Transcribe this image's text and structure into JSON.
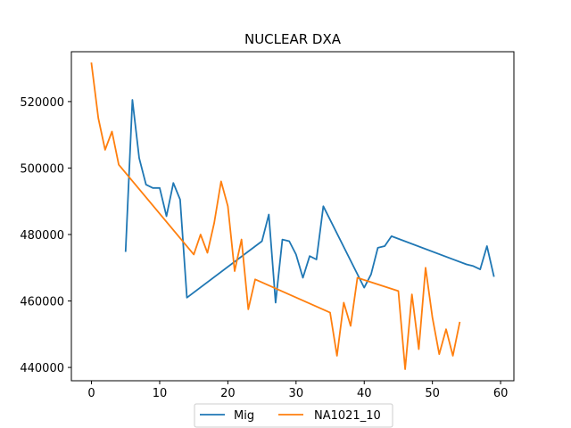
{
  "chart_data": {
    "type": "line",
    "title": "NUCLEAR DXA",
    "xlabel": "",
    "ylabel": "",
    "xlim": [
      -2.95,
      61.95
    ],
    "ylim": [
      436000,
      535000
    ],
    "xticks": [
      0,
      10,
      20,
      30,
      40,
      50,
      60
    ],
    "yticks": [
      440000,
      460000,
      480000,
      500000,
      520000
    ],
    "grid": false,
    "legend_position": "bottom-center",
    "series": [
      {
        "name": "Mig",
        "color": "#1f77b4",
        "points": [
          [
            5,
            475000
          ],
          [
            6,
            520500
          ],
          [
            7,
            503000
          ],
          [
            8,
            495000
          ],
          [
            9,
            494000
          ],
          [
            10,
            494000
          ],
          [
            11,
            485500
          ],
          [
            12,
            495500
          ],
          [
            13,
            490500
          ],
          [
            14,
            461000
          ],
          [
            25,
            478000
          ],
          [
            26,
            486000
          ],
          [
            27,
            459500
          ],
          [
            28,
            478500
          ],
          [
            29,
            478000
          ],
          [
            30,
            474000
          ],
          [
            31,
            467000
          ],
          [
            32,
            473500
          ],
          [
            33,
            472500
          ],
          [
            34,
            488500
          ],
          [
            40,
            464000
          ],
          [
            41,
            468000
          ],
          [
            42,
            476000
          ],
          [
            43,
            476500
          ],
          [
            44,
            479500
          ],
          [
            55,
            471000
          ],
          [
            56,
            470500
          ],
          [
            57,
            469500
          ],
          [
            58,
            476500
          ],
          [
            59,
            467500
          ]
        ]
      },
      {
        "name": "NA1021_10",
        "color": "#ff7f0e",
        "points": [
          [
            0,
            531500
          ],
          [
            1,
            515000
          ],
          [
            2,
            505500
          ],
          [
            3,
            511000
          ],
          [
            4,
            501000
          ],
          [
            15,
            474000
          ],
          [
            16,
            480000
          ],
          [
            17,
            474500
          ],
          [
            18,
            483500
          ],
          [
            19,
            496000
          ],
          [
            20,
            488500
          ],
          [
            21,
            469000
          ],
          [
            22,
            478500
          ],
          [
            23,
            457500
          ],
          [
            24,
            466500
          ],
          [
            35,
            456500
          ],
          [
            36,
            443500
          ],
          [
            37,
            459500
          ],
          [
            38,
            452500
          ],
          [
            39,
            467000
          ],
          [
            45,
            463000
          ],
          [
            46,
            439500
          ],
          [
            47,
            462000
          ],
          [
            48,
            445500
          ],
          [
            49,
            470000
          ],
          [
            50,
            455000
          ],
          [
            51,
            444000
          ],
          [
            52,
            451500
          ],
          [
            53,
            443500
          ],
          [
            54,
            453500
          ]
        ]
      }
    ]
  }
}
